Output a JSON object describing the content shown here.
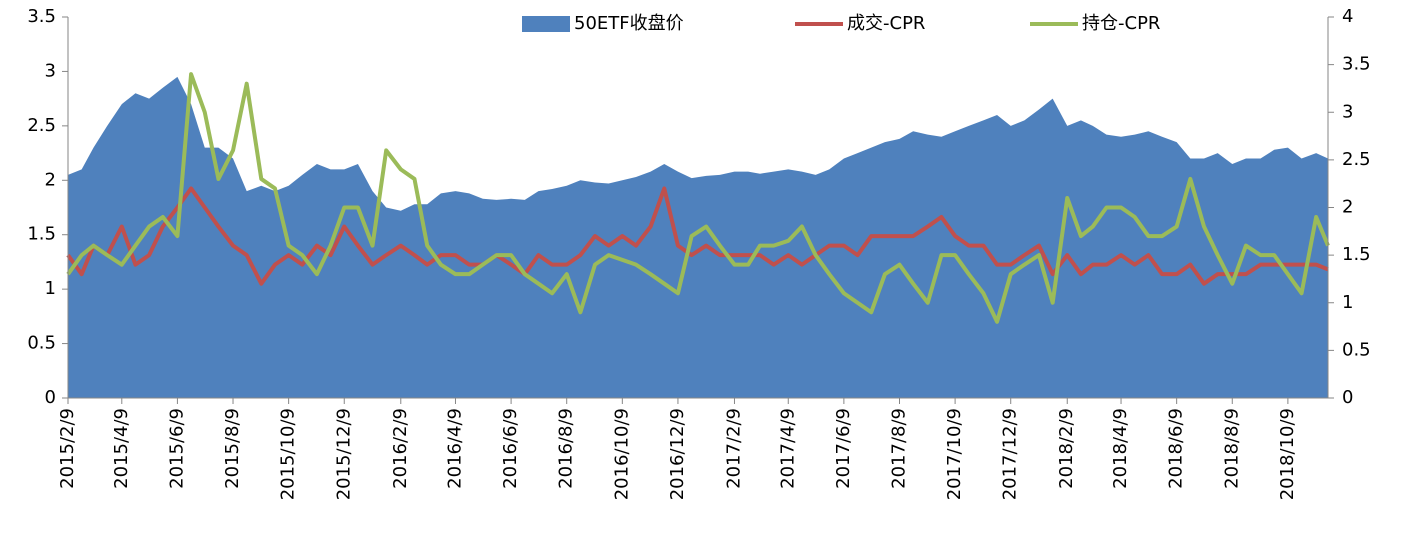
{
  "chart_data": {
    "type": "combo",
    "x": [
      "2015/2/9",
      "2015/2/24",
      "2015/3/9",
      "2015/3/24",
      "2015/4/9",
      "2015/4/24",
      "2015/5/9",
      "2015/5/24",
      "2015/6/9",
      "2015/6/24",
      "2015/7/9",
      "2015/7/24",
      "2015/8/9",
      "2015/8/24",
      "2015/9/9",
      "2015/9/24",
      "2015/10/9",
      "2015/10/24",
      "2015/11/9",
      "2015/11/24",
      "2015/12/9",
      "2015/12/24",
      "2016/1/9",
      "2016/1/24",
      "2016/2/9",
      "2016/2/24",
      "2016/3/9",
      "2016/3/24",
      "2016/4/9",
      "2016/4/24",
      "2016/5/9",
      "2016/5/24",
      "2016/6/9",
      "2016/6/24",
      "2016/7/9",
      "2016/7/24",
      "2016/8/9",
      "2016/8/24",
      "2016/9/9",
      "2016/9/24",
      "2016/10/9",
      "2016/10/24",
      "2016/11/9",
      "2016/11/24",
      "2016/12/9",
      "2016/12/24",
      "2017/1/9",
      "2017/1/24",
      "2017/2/9",
      "2017/2/24",
      "2017/3/9",
      "2017/3/24",
      "2017/4/9",
      "2017/4/24",
      "2017/5/9",
      "2017/5/24",
      "2017/6/9",
      "2017/6/24",
      "2017/7/9",
      "2017/7/24",
      "2017/8/9",
      "2017/8/24",
      "2017/9/9",
      "2017/9/24",
      "2017/10/9",
      "2017/10/24",
      "2017/11/9",
      "2017/11/24",
      "2017/12/9",
      "2017/12/24",
      "2018/1/9",
      "2018/1/24",
      "2018/2/9",
      "2018/2/24",
      "2018/3/9",
      "2018/3/24",
      "2018/4/9",
      "2018/4/24",
      "2018/5/9",
      "2018/5/24",
      "2018/6/9",
      "2018/6/24",
      "2018/7/9",
      "2018/7/24",
      "2018/8/9",
      "2018/8/24",
      "2018/9/9",
      "2018/9/24",
      "2018/10/9",
      "2018/10/24",
      "2018/11/9",
      "2018/11/22"
    ],
    "series": [
      {
        "name": "50ETF收盘价",
        "type": "area",
        "color": "#4f81bd",
        "values": [
          2.05,
          2.1,
          2.3,
          2.5,
          2.7,
          2.8,
          2.75,
          2.85,
          2.95,
          2.7,
          2.3,
          2.3,
          2.2,
          1.9,
          1.95,
          1.9,
          1.95,
          2.05,
          2.15,
          2.1,
          2.1,
          2.15,
          1.9,
          1.75,
          1.72,
          1.78,
          1.78,
          1.88,
          1.9,
          1.88,
          1.83,
          1.82,
          1.83,
          1.82,
          1.9,
          1.92,
          1.95,
          2.0,
          1.98,
          1.97,
          2.0,
          2.03,
          2.08,
          2.15,
          2.08,
          2.02,
          2.04,
          2.05,
          2.08,
          2.08,
          2.06,
          2.08,
          2.1,
          2.08,
          2.05,
          2.1,
          2.2,
          2.25,
          2.3,
          2.35,
          2.38,
          2.45,
          2.42,
          2.4,
          2.45,
          2.5,
          2.55,
          2.6,
          2.5,
          2.55,
          2.65,
          2.75,
          2.5,
          2.55,
          2.5,
          2.42,
          2.4,
          2.42,
          2.45,
          2.4,
          2.35,
          2.2,
          2.2,
          2.25,
          2.15,
          2.2,
          2.2,
          2.28,
          2.3,
          2.2,
          2.25,
          2.2
        ]
      },
      {
        "name": "成交-CPR",
        "type": "line",
        "axis": "y2",
        "color": "#c0504d",
        "values": [
          1.5,
          1.3,
          1.6,
          1.5,
          1.8,
          1.4,
          1.5,
          1.8,
          2.0,
          2.2,
          2.0,
          1.8,
          1.6,
          1.5,
          1.2,
          1.4,
          1.5,
          1.4,
          1.6,
          1.5,
          1.8,
          1.6,
          1.4,
          1.5,
          1.6,
          1.5,
          1.4,
          1.5,
          1.5,
          1.4,
          1.4,
          1.5,
          1.4,
          1.3,
          1.5,
          1.4,
          1.4,
          1.5,
          1.7,
          1.6,
          1.7,
          1.6,
          1.8,
          2.2,
          1.6,
          1.5,
          1.6,
          1.5,
          1.5,
          1.5,
          1.5,
          1.4,
          1.5,
          1.4,
          1.5,
          1.6,
          1.6,
          1.5,
          1.7,
          1.7,
          1.7,
          1.7,
          1.8,
          1.9,
          1.7,
          1.6,
          1.6,
          1.4,
          1.4,
          1.5,
          1.6,
          1.3,
          1.5,
          1.3,
          1.4,
          1.4,
          1.5,
          1.4,
          1.5,
          1.3,
          1.3,
          1.4,
          1.2,
          1.3,
          1.3,
          1.3,
          1.4,
          1.4,
          1.4,
          1.4,
          1.4,
          1.35
        ]
      },
      {
        "name": "持仓-CPR",
        "type": "line",
        "axis": "y2",
        "color": "#9bbb59",
        "values": [
          1.3,
          1.5,
          1.6,
          1.5,
          1.4,
          1.6,
          1.8,
          1.9,
          1.7,
          3.4,
          3.0,
          2.3,
          2.6,
          3.3,
          2.3,
          2.2,
          1.6,
          1.5,
          1.3,
          1.6,
          2.0,
          2.0,
          1.6,
          2.6,
          2.4,
          2.3,
          1.6,
          1.4,
          1.3,
          1.3,
          1.4,
          1.5,
          1.5,
          1.3,
          1.2,
          1.1,
          1.3,
          0.9,
          1.4,
          1.5,
          1.45,
          1.4,
          1.3,
          1.2,
          1.1,
          1.7,
          1.8,
          1.6,
          1.4,
          1.4,
          1.6,
          1.6,
          1.65,
          1.8,
          1.5,
          1.3,
          1.1,
          1.0,
          0.9,
          1.3,
          1.4,
          1.2,
          1.0,
          1.5,
          1.5,
          1.3,
          1.1,
          0.8,
          1.3,
          1.4,
          1.5,
          1.0,
          2.1,
          1.7,
          1.8,
          2.0,
          2.0,
          1.9,
          1.7,
          1.7,
          1.8,
          2.3,
          1.8,
          1.5,
          1.2,
          1.6,
          1.5,
          1.5,
          1.3,
          1.1,
          1.9,
          1.6
        ]
      }
    ],
    "xlim": [
      "2015/2/9",
      "2018/11/22"
    ],
    "xticks": [
      "2015/2/9",
      "2015/4/9",
      "2015/6/9",
      "2015/8/9",
      "2015/10/9",
      "2015/12/9",
      "2016/2/9",
      "2016/4/9",
      "2016/6/9",
      "2016/8/9",
      "2016/10/9",
      "2016/12/9",
      "2017/2/9",
      "2017/4/9",
      "2017/6/9",
      "2017/8/9",
      "2017/10/9",
      "2017/12/9",
      "2018/2/9",
      "2018/4/9",
      "2018/6/9",
      "2018/8/9",
      "2018/10/9"
    ],
    "ylim": [
      0,
      3.5
    ],
    "yticks": [
      0,
      0.5,
      1,
      1.5,
      2,
      2.5,
      3,
      3.5
    ],
    "y2lim": [
      0,
      4
    ],
    "y2ticks": [
      0,
      0.5,
      1,
      1.5,
      2,
      2.5,
      3,
      3.5,
      4
    ],
    "legend": "top"
  }
}
